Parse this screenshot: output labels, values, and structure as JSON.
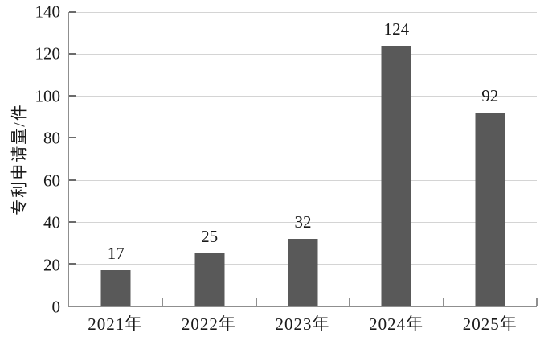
{
  "chart_data": {
    "type": "bar",
    "title": "",
    "categories": [
      "2021年",
      "2022年",
      "2023年",
      "2024年",
      "2025年"
    ],
    "values": [
      17,
      25,
      32,
      124,
      92
    ],
    "xlabel": "",
    "ylabel": "专利申请量/件",
    "ylim": [
      0,
      140
    ],
    "ytick_step": 20,
    "ytick_labels": [
      "0",
      "20",
      "40",
      "60",
      "80",
      "100",
      "120",
      "140"
    ],
    "grid": "horizontal",
    "legend": "none",
    "bar_color": "#595959",
    "gridline_color": "#d4d4d4",
    "axis_color": "#8f8f8f",
    "text_color": "#1a1a1a"
  }
}
